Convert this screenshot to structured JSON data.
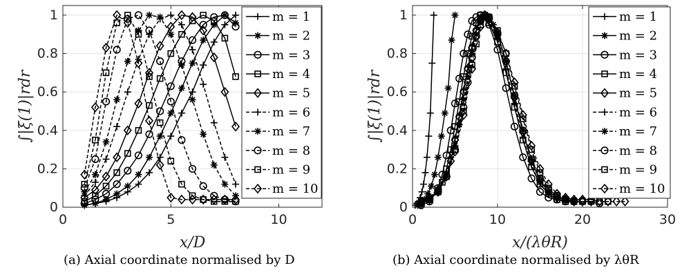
{
  "captions": {
    "a": "(a) Axial coordinate normalised by D",
    "b": "(b) Axial coordinate normalised by λθR"
  },
  "chart_data": [
    {
      "type": "line",
      "panel": "a",
      "xlabel": "x/D",
      "ylabel": "∫|ξ(1)|rdr",
      "xlim": [
        0,
        12
      ],
      "ylim": [
        0,
        1.05
      ],
      "xticks": [
        0,
        5,
        10
      ],
      "yticks": [
        0,
        0.2,
        0.4,
        0.6,
        0.8,
        1
      ],
      "grid": true,
      "legend_position": "top-right",
      "series": [
        {
          "name": "m = 1",
          "marker": "plus",
          "dash": "solid",
          "x": [
            1,
            1.5,
            2,
            2.5,
            3,
            3.5,
            4,
            4.5,
            5,
            5.5,
            6,
            6.5,
            7,
            7.5,
            8
          ],
          "y": [
            0.01,
            0.02,
            0.03,
            0.05,
            0.08,
            0.12,
            0.18,
            0.26,
            0.37,
            0.49,
            0.6,
            0.74,
            0.86,
            0.95,
            1.0
          ]
        },
        {
          "name": "m = 2",
          "marker": "star",
          "dash": "solid",
          "x": [
            1,
            1.5,
            2,
            2.5,
            3,
            3.5,
            4,
            4.5,
            5,
            5.5,
            6,
            6.5,
            7,
            7.5,
            8
          ],
          "y": [
            0.01,
            0.02,
            0.04,
            0.07,
            0.11,
            0.17,
            0.26,
            0.37,
            0.49,
            0.62,
            0.75,
            0.87,
            0.95,
            1.0,
            0.96
          ]
        },
        {
          "name": "m = 3",
          "marker": "circle",
          "dash": "solid",
          "x": [
            1,
            1.5,
            2,
            2.5,
            3,
            3.5,
            4,
            4.5,
            5,
            5.5,
            6,
            6.5,
            7,
            7.5,
            8
          ],
          "y": [
            0.02,
            0.04,
            0.07,
            0.12,
            0.19,
            0.27,
            0.38,
            0.5,
            0.63,
            0.76,
            0.87,
            0.95,
            0.99,
            1.0,
            0.94
          ]
        },
        {
          "name": "m = 4",
          "marker": "square",
          "dash": "solid",
          "x": [
            1,
            1.5,
            2,
            2.5,
            3,
            3.5,
            4,
            4.5,
            5,
            5.5,
            6,
            6.5,
            7,
            7.5,
            8
          ],
          "y": [
            0.03,
            0.06,
            0.11,
            0.18,
            0.28,
            0.4,
            0.53,
            0.67,
            0.8,
            0.9,
            0.97,
            1.0,
            0.97,
            0.88,
            0.68
          ]
        },
        {
          "name": "m = 5",
          "marker": "diamond",
          "dash": "solid",
          "x": [
            1,
            1.5,
            2,
            2.5,
            3,
            3.5,
            4,
            4.5,
            5,
            5.5,
            6,
            6.5,
            7,
            7.5,
            8
          ],
          "y": [
            0.05,
            0.09,
            0.16,
            0.26,
            0.4,
            0.54,
            0.7,
            0.84,
            0.94,
            1.0,
            0.99,
            0.92,
            0.78,
            0.6,
            0.42
          ]
        },
        {
          "name": "m = 6",
          "marker": "plus",
          "dash": "dashed",
          "x": [
            1,
            1.5,
            2,
            2.5,
            3,
            3.5,
            4,
            4.5,
            5,
            5.5,
            6,
            6.5,
            7,
            7.5,
            8
          ],
          "y": [
            0.06,
            0.13,
            0.25,
            0.42,
            0.6,
            0.77,
            0.9,
            0.98,
            1.0,
            0.95,
            0.82,
            0.64,
            0.44,
            0.26,
            0.12
          ]
        },
        {
          "name": "m = 7",
          "marker": "star",
          "dash": "dashed",
          "x": [
            1,
            1.5,
            2,
            2.5,
            3,
            3.5,
            4,
            4.5,
            5,
            5.5,
            6,
            6.5,
            7,
            7.5,
            8
          ],
          "y": [
            0.08,
            0.17,
            0.34,
            0.56,
            0.76,
            0.92,
            1.0,
            0.99,
            0.9,
            0.74,
            0.56,
            0.38,
            0.22,
            0.12,
            0.06
          ]
        },
        {
          "name": "m = 8",
          "marker": "circle",
          "dash": "dashed",
          "x": [
            1,
            1.5,
            2,
            2.5,
            3,
            3.5,
            4,
            4.5,
            5,
            5.5,
            6,
            6.5,
            7,
            7.5,
            8
          ],
          "y": [
            0.1,
            0.25,
            0.55,
            0.82,
            0.98,
            1.0,
            0.92,
            0.76,
            0.55,
            0.35,
            0.2,
            0.11,
            0.06,
            0.04,
            0.03
          ]
        },
        {
          "name": "m = 9",
          "marker": "square",
          "dash": "dashed",
          "x": [
            1,
            1.5,
            2,
            2.5,
            3,
            3.5,
            4,
            4.5,
            5,
            5.5,
            6,
            6.5,
            7,
            7.5,
            8
          ],
          "y": [
            0.12,
            0.35,
            0.7,
            0.96,
            1.0,
            0.9,
            0.68,
            0.44,
            0.24,
            0.12,
            0.06,
            0.04,
            0.03,
            0.03,
            0.03
          ]
        },
        {
          "name": "m = 10",
          "marker": "diamond",
          "dash": "dashed",
          "x": [
            1,
            1.5,
            2,
            2.5,
            3,
            3.5,
            4,
            4.5,
            5,
            5.5,
            6,
            6.5,
            7,
            7.5,
            8
          ],
          "y": [
            0.17,
            0.52,
            0.83,
            1.0,
            0.96,
            0.75,
            0.45,
            0.22,
            0.05,
            0.04,
            0.04,
            0.04,
            0.04,
            0.04,
            0.04
          ]
        }
      ]
    },
    {
      "type": "line",
      "panel": "b",
      "xlabel": "x/(λθR)",
      "ylabel": "∫|ξ(1)|rdr",
      "xlim": [
        0,
        30
      ],
      "ylim": [
        0,
        1.05
      ],
      "xticks": [
        0,
        10,
        20,
        30
      ],
      "yticks": [
        0,
        0.2,
        0.4,
        0.6,
        0.8,
        1
      ],
      "grid": true,
      "legend_position": "top-right",
      "series": [
        {
          "name": "m = 1",
          "marker": "plus",
          "dash": "solid",
          "x": [
            0.3,
            0.5,
            0.7,
            0.9,
            1.1,
            1.3,
            1.5,
            1.7,
            1.9,
            2.1,
            2.3,
            2.5
          ],
          "y": [
            0.01,
            0.02,
            0.03,
            0.05,
            0.08,
            0.12,
            0.18,
            0.26,
            0.37,
            0.49,
            0.75,
            1.0
          ]
        },
        {
          "name": "m = 2",
          "marker": "star",
          "dash": "solid",
          "x": [
            0.6,
            1,
            1.4,
            1.8,
            2.2,
            2.6,
            3,
            3.4,
            3.8,
            4.2,
            4.6,
            5
          ],
          "y": [
            0.01,
            0.02,
            0.04,
            0.07,
            0.11,
            0.17,
            0.26,
            0.37,
            0.49,
            0.62,
            0.87,
            1.0
          ]
        },
        {
          "name": "m = 3",
          "marker": "circle",
          "dash": "solid",
          "x": [
            1,
            2,
            3,
            3.5,
            4,
            4.5,
            5,
            5.5,
            6,
            6.5,
            7,
            7.5,
            8,
            9,
            10,
            11,
            12,
            13,
            14,
            15,
            16,
            17,
            18,
            19
          ],
          "y": [
            0.01,
            0.03,
            0.1,
            0.17,
            0.27,
            0.4,
            0.54,
            0.67,
            0.8,
            0.9,
            0.97,
            0.99,
            1.0,
            0.95,
            0.82,
            0.62,
            0.42,
            0.26,
            0.15,
            0.08,
            0.05,
            0.04,
            0.03,
            0.03
          ]
        },
        {
          "name": "m = 4",
          "marker": "square",
          "dash": "solid",
          "x": [
            1,
            2,
            3,
            3.5,
            4,
            4.5,
            5,
            5.5,
            6,
            6.5,
            7,
            7.5,
            8,
            8.5,
            9,
            10,
            11,
            12,
            13,
            14,
            15,
            16,
            17,
            18,
            19,
            20
          ],
          "y": [
            0.02,
            0.04,
            0.08,
            0.13,
            0.2,
            0.3,
            0.42,
            0.55,
            0.68,
            0.8,
            0.89,
            0.96,
            1.0,
            0.99,
            0.96,
            0.86,
            0.7,
            0.52,
            0.35,
            0.21,
            0.12,
            0.07,
            0.04,
            0.03,
            0.03,
            0.03
          ]
        },
        {
          "name": "m = 5",
          "marker": "diamond",
          "dash": "solid",
          "x": [
            1,
            2,
            3,
            4,
            4.5,
            5,
            5.5,
            6,
            6.5,
            7,
            7.5,
            8,
            8.5,
            9,
            10,
            11,
            12,
            13,
            14,
            15,
            16,
            17,
            18,
            19,
            20,
            21
          ],
          "y": [
            0.02,
            0.04,
            0.08,
            0.16,
            0.24,
            0.35,
            0.47,
            0.6,
            0.72,
            0.83,
            0.92,
            0.98,
            1.0,
            0.98,
            0.9,
            0.76,
            0.57,
            0.39,
            0.24,
            0.14,
            0.08,
            0.05,
            0.04,
            0.03,
            0.03,
            0.03
          ]
        },
        {
          "name": "m = 6",
          "marker": "plus",
          "dash": "dashed",
          "x": [
            1,
            2,
            3,
            4,
            4.5,
            5,
            5.5,
            6,
            6.5,
            7,
            7.5,
            8,
            8.5,
            9,
            10,
            11,
            12,
            13,
            14,
            15,
            16,
            17,
            18
          ],
          "y": [
            0.02,
            0.05,
            0.1,
            0.18,
            0.26,
            0.36,
            0.48,
            0.61,
            0.73,
            0.84,
            0.93,
            0.99,
            1.0,
            0.97,
            0.88,
            0.72,
            0.54,
            0.36,
            0.22,
            0.12,
            0.07,
            0.04,
            0.03
          ]
        },
        {
          "name": "m = 7",
          "marker": "star",
          "dash": "dashed",
          "x": [
            1,
            2,
            3,
            4,
            5,
            5.5,
            6,
            6.5,
            7,
            7.5,
            8,
            8.5,
            9,
            9.5,
            10,
            11,
            12,
            13,
            14,
            15,
            16,
            17,
            18,
            19
          ],
          "y": [
            0.02,
            0.04,
            0.08,
            0.16,
            0.32,
            0.43,
            0.56,
            0.68,
            0.8,
            0.9,
            0.97,
            1.0,
            0.99,
            0.95,
            0.9,
            0.76,
            0.58,
            0.4,
            0.25,
            0.14,
            0.08,
            0.05,
            0.04,
            0.03
          ]
        },
        {
          "name": "m = 8",
          "marker": "circle",
          "dash": "dashed",
          "x": [
            1,
            2,
            3,
            4,
            5,
            6,
            6.5,
            7,
            7.5,
            8,
            8.5,
            9,
            10,
            11,
            12,
            13,
            14,
            15,
            16,
            17,
            18,
            19,
            20,
            22
          ],
          "y": [
            0.02,
            0.04,
            0.08,
            0.16,
            0.3,
            0.52,
            0.65,
            0.78,
            0.89,
            0.97,
            1.0,
            0.99,
            0.9,
            0.76,
            0.58,
            0.4,
            0.25,
            0.15,
            0.09,
            0.06,
            0.04,
            0.03,
            0.03,
            0.02
          ]
        },
        {
          "name": "m = 9",
          "marker": "square",
          "dash": "dashed",
          "x": [
            1,
            2,
            3,
            4,
            5,
            6,
            7,
            7.5,
            8,
            8.5,
            9,
            10,
            11,
            12,
            13,
            14,
            15,
            16,
            17,
            18,
            19,
            20,
            21,
            22,
            23
          ],
          "y": [
            0.02,
            0.04,
            0.08,
            0.16,
            0.3,
            0.5,
            0.74,
            0.85,
            0.95,
            1.0,
            0.99,
            0.92,
            0.8,
            0.63,
            0.46,
            0.3,
            0.18,
            0.1,
            0.06,
            0.04,
            0.03,
            0.03,
            0.03,
            0.03,
            0.03
          ]
        },
        {
          "name": "m = 10",
          "marker": "diamond",
          "dash": "dashed",
          "x": [
            1,
            2,
            3,
            4,
            5,
            6,
            7,
            8,
            8.5,
            9,
            10,
            11,
            12,
            13,
            14,
            15,
            16,
            17,
            18,
            19,
            20,
            21,
            22,
            23,
            24,
            25
          ],
          "y": [
            0.03,
            0.05,
            0.09,
            0.16,
            0.29,
            0.48,
            0.72,
            0.94,
            1.0,
            0.98,
            0.91,
            0.8,
            0.65,
            0.48,
            0.32,
            0.2,
            0.12,
            0.07,
            0.05,
            0.04,
            0.04,
            0.04,
            0.03,
            0.03,
            0.03,
            0.03
          ]
        }
      ]
    }
  ]
}
